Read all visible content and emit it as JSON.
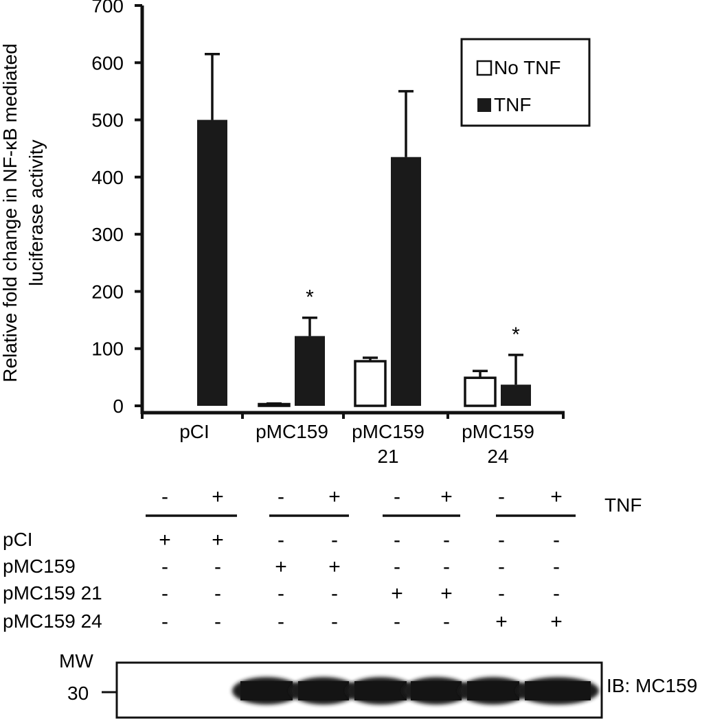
{
  "chart_data": {
    "type": "bar",
    "ylabel_lines": [
      "Relative fold change in NF-κB mediated",
      "luciferase activity"
    ],
    "yticks": [
      0,
      100,
      200,
      300,
      400,
      500,
      600,
      700
    ],
    "ylim": [
      0,
      700
    ],
    "grid": false,
    "legend_position": "top-right",
    "categories": [
      {
        "lines": [
          "pCI"
        ]
      },
      {
        "lines": [
          "pMC159"
        ]
      },
      {
        "lines": [
          "pMC159",
          "21"
        ]
      },
      {
        "lines": [
          "pMC159",
          "24"
        ]
      }
    ],
    "series": [
      {
        "name": "No TNF",
        "fill": "#ffffff",
        "values": [
          0,
          3,
          78,
          49
        ],
        "errors": [
          0,
          1,
          6,
          12
        ]
      },
      {
        "name": "TNF",
        "fill": "#1a1a1a",
        "values": [
          500,
          122,
          435,
          37
        ],
        "errors": [
          115,
          32,
          115,
          52
        ]
      }
    ],
    "annotations": [
      {
        "category": 1,
        "text": "*"
      },
      {
        "category": 3,
        "text": "*"
      }
    ]
  },
  "condition_table": {
    "tnf": {
      "label": "TNF",
      "signs": [
        "-",
        "+",
        "-",
        "+",
        "-",
        "+",
        "-",
        "+"
      ]
    },
    "rows": [
      {
        "label": "pCI",
        "signs": [
          "+",
          "+",
          "-",
          "-",
          "-",
          "-",
          "-",
          "-"
        ]
      },
      {
        "label": "pMC159",
        "signs": [
          "-",
          "-",
          "+",
          "+",
          "-",
          "-",
          "-",
          "-"
        ]
      },
      {
        "label": "pMC159 21",
        "signs": [
          "-",
          "-",
          "-",
          "-",
          "+",
          "+",
          "-",
          "-"
        ]
      },
      {
        "label": "pMC159 24",
        "signs": [
          "-",
          "-",
          "-",
          "-",
          "-",
          "-",
          "+",
          "+"
        ]
      }
    ]
  },
  "blot": {
    "mw_label": "MW",
    "mw_marker": "30",
    "ib_label": "IB: MC159",
    "band_lanes": [
      false,
      false,
      true,
      true,
      true,
      true,
      true,
      true
    ]
  }
}
